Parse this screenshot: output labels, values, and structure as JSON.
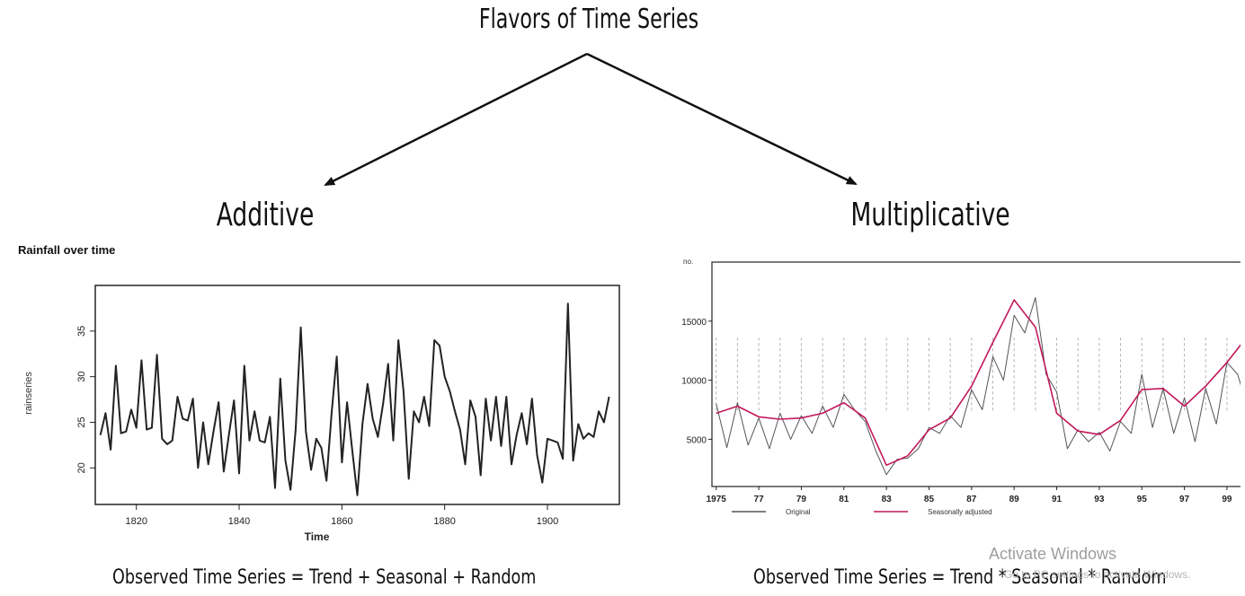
{
  "header": {
    "title": "Flavors of Time Series"
  },
  "branches": {
    "additive": "Additive",
    "multiplicative": "Multiplicative"
  },
  "chart_data": [
    {
      "type": "line",
      "title": "Rainfall over time",
      "xlabel": "Time",
      "ylabel": "rainseries",
      "xlim": [
        1812,
        1914
      ],
      "ylim": [
        16,
        40
      ],
      "xticks": [
        1820,
        1840,
        1860,
        1880,
        1900
      ],
      "yticks": [
        20,
        25,
        30,
        35
      ],
      "grid": false,
      "series": [
        {
          "name": "",
          "color": "#222222",
          "x": [
            1813,
            1814,
            1815,
            1816,
            1817,
            1818,
            1819,
            1820,
            1821,
            1822,
            1823,
            1824,
            1825,
            1826,
            1827,
            1828,
            1829,
            1830,
            1831,
            1832,
            1833,
            1834,
            1835,
            1836,
            1837,
            1838,
            1839,
            1840,
            1841,
            1842,
            1843,
            1844,
            1845,
            1846,
            1847,
            1848,
            1849,
            1850,
            1851,
            1852,
            1853,
            1854,
            1855,
            1856,
            1857,
            1858,
            1859,
            1860,
            1861,
            1862,
            1863,
            1864,
            1865,
            1866,
            1867,
            1868,
            1869,
            1870,
            1871,
            1872,
            1873,
            1874,
            1875,
            1876,
            1877,
            1878,
            1879,
            1880,
            1881,
            1882,
            1883,
            1884,
            1885,
            1886,
            1887,
            1888,
            1889,
            1890,
            1891,
            1892,
            1893,
            1894,
            1895,
            1896,
            1897,
            1898,
            1899,
            1900,
            1901,
            1902,
            1903,
            1904,
            1905,
            1906,
            1907,
            1908,
            1909,
            1910,
            1911,
            1912
          ],
          "y": [
            23.6,
            26.0,
            22.0,
            31.2,
            23.8,
            24.0,
            26.4,
            24.4,
            31.8,
            24.2,
            24.4,
            32.4,
            23.2,
            22.6,
            23.0,
            27.8,
            25.4,
            25.2,
            27.6,
            20.0,
            25.0,
            20.4,
            24.0,
            27.2,
            19.6,
            23.6,
            27.4,
            19.4,
            31.2,
            23.0,
            26.2,
            23.0,
            22.8,
            25.6,
            17.8,
            29.8,
            20.8,
            17.6,
            24.2,
            35.4,
            24.0,
            19.8,
            23.2,
            22.2,
            18.6,
            26.0,
            32.2,
            20.6,
            27.2,
            22.0,
            17.0,
            24.8,
            29.2,
            25.4,
            23.4,
            27.0,
            31.4,
            23.0,
            34.0,
            28.4,
            18.8,
            26.2,
            25.0,
            27.8,
            24.6,
            34.0,
            33.4,
            30.0,
            28.4,
            26.2,
            24.2,
            20.4,
            27.4,
            25.6,
            19.2,
            27.6,
            23.0,
            27.8,
            22.4,
            27.8,
            20.4,
            23.6,
            26.0,
            22.6,
            27.6,
            21.4,
            18.4,
            23.2,
            23.0,
            22.8,
            21.0,
            38.0,
            20.8,
            24.8,
            23.2,
            23.8,
            23.4,
            26.2,
            25.0,
            27.8
          ]
        }
      ]
    },
    {
      "type": "line",
      "title": "",
      "ylabel": "no.",
      "xlim": [
        1974.8,
        2001.2
      ],
      "ylim": [
        1000,
        20000
      ],
      "xticks": [
        "1975",
        "77",
        "79",
        "81",
        "83",
        "85",
        "87",
        "89",
        "91",
        "93",
        "95",
        "97",
        "99"
      ],
      "yticks": [
        5000,
        10000,
        15000
      ],
      "grid": "vertical-dashed",
      "legend": "bottom",
      "series": [
        {
          "name": "Original",
          "color": "#555555",
          "x": [
            1975,
            1975.5,
            1976,
            1976.5,
            1977,
            1977.5,
            1978,
            1978.5,
            1979,
            1979.5,
            1980,
            1980.5,
            1981,
            1981.5,
            1982,
            1982.5,
            1983,
            1983.5,
            1984,
            1984.5,
            1985,
            1985.5,
            1986,
            1986.5,
            1987,
            1987.5,
            1988,
            1988.5,
            1989,
            1989.5,
            1990,
            1990.5,
            1991,
            1991.5,
            1992,
            1992.5,
            1993,
            1993.5,
            1994,
            1994.5,
            1995,
            1995.5,
            1996,
            1996.5,
            1997,
            1997.5,
            1998,
            1998.5,
            1999,
            1999.5,
            2000
          ],
          "y": [
            8000,
            4300,
            8100,
            4500,
            6800,
            4200,
            7200,
            5000,
            7000,
            5500,
            7800,
            6000,
            8800,
            7500,
            6500,
            4000,
            2000,
            3300,
            3400,
            4200,
            6000,
            5500,
            7000,
            6000,
            9200,
            7500,
            12000,
            10000,
            15500,
            14000,
            17000,
            10500,
            9000,
            4200,
            5800,
            4800,
            5600,
            4000,
            6500,
            5500,
            10500,
            6000,
            9300,
            5500,
            8500,
            4800,
            9300,
            6300,
            11500,
            10500,
            7500
          ]
        },
        {
          "name": "Seasonally adjusted",
          "color": "#c2185b",
          "x": [
            1975,
            1976,
            1977,
            1978,
            1979,
            1980,
            1981,
            1982,
            1983,
            1984,
            1985,
            1986,
            1987,
            1988,
            1989,
            1990,
            1991,
            1992,
            1993,
            1994,
            1995,
            1996,
            1997,
            1998,
            1999,
            2000
          ],
          "y": [
            7200,
            7800,
            6900,
            6700,
            6800,
            7200,
            8100,
            6800,
            2800,
            3600,
            5800,
            6800,
            9500,
            13200,
            16800,
            14500,
            7200,
            5700,
            5400,
            6600,
            9200,
            9300,
            7800,
            9500,
            11500,
            13800
          ]
        }
      ]
    }
  ],
  "formulas": {
    "additive": "Observed Time Series = Trend + Seasonal + Random",
    "multiplicative": "Observed Time Series = Trend * Seasonal * Random"
  },
  "watermark": {
    "title": "Activate Windows",
    "subtitle": "Go to PC settings to activate Windows."
  }
}
